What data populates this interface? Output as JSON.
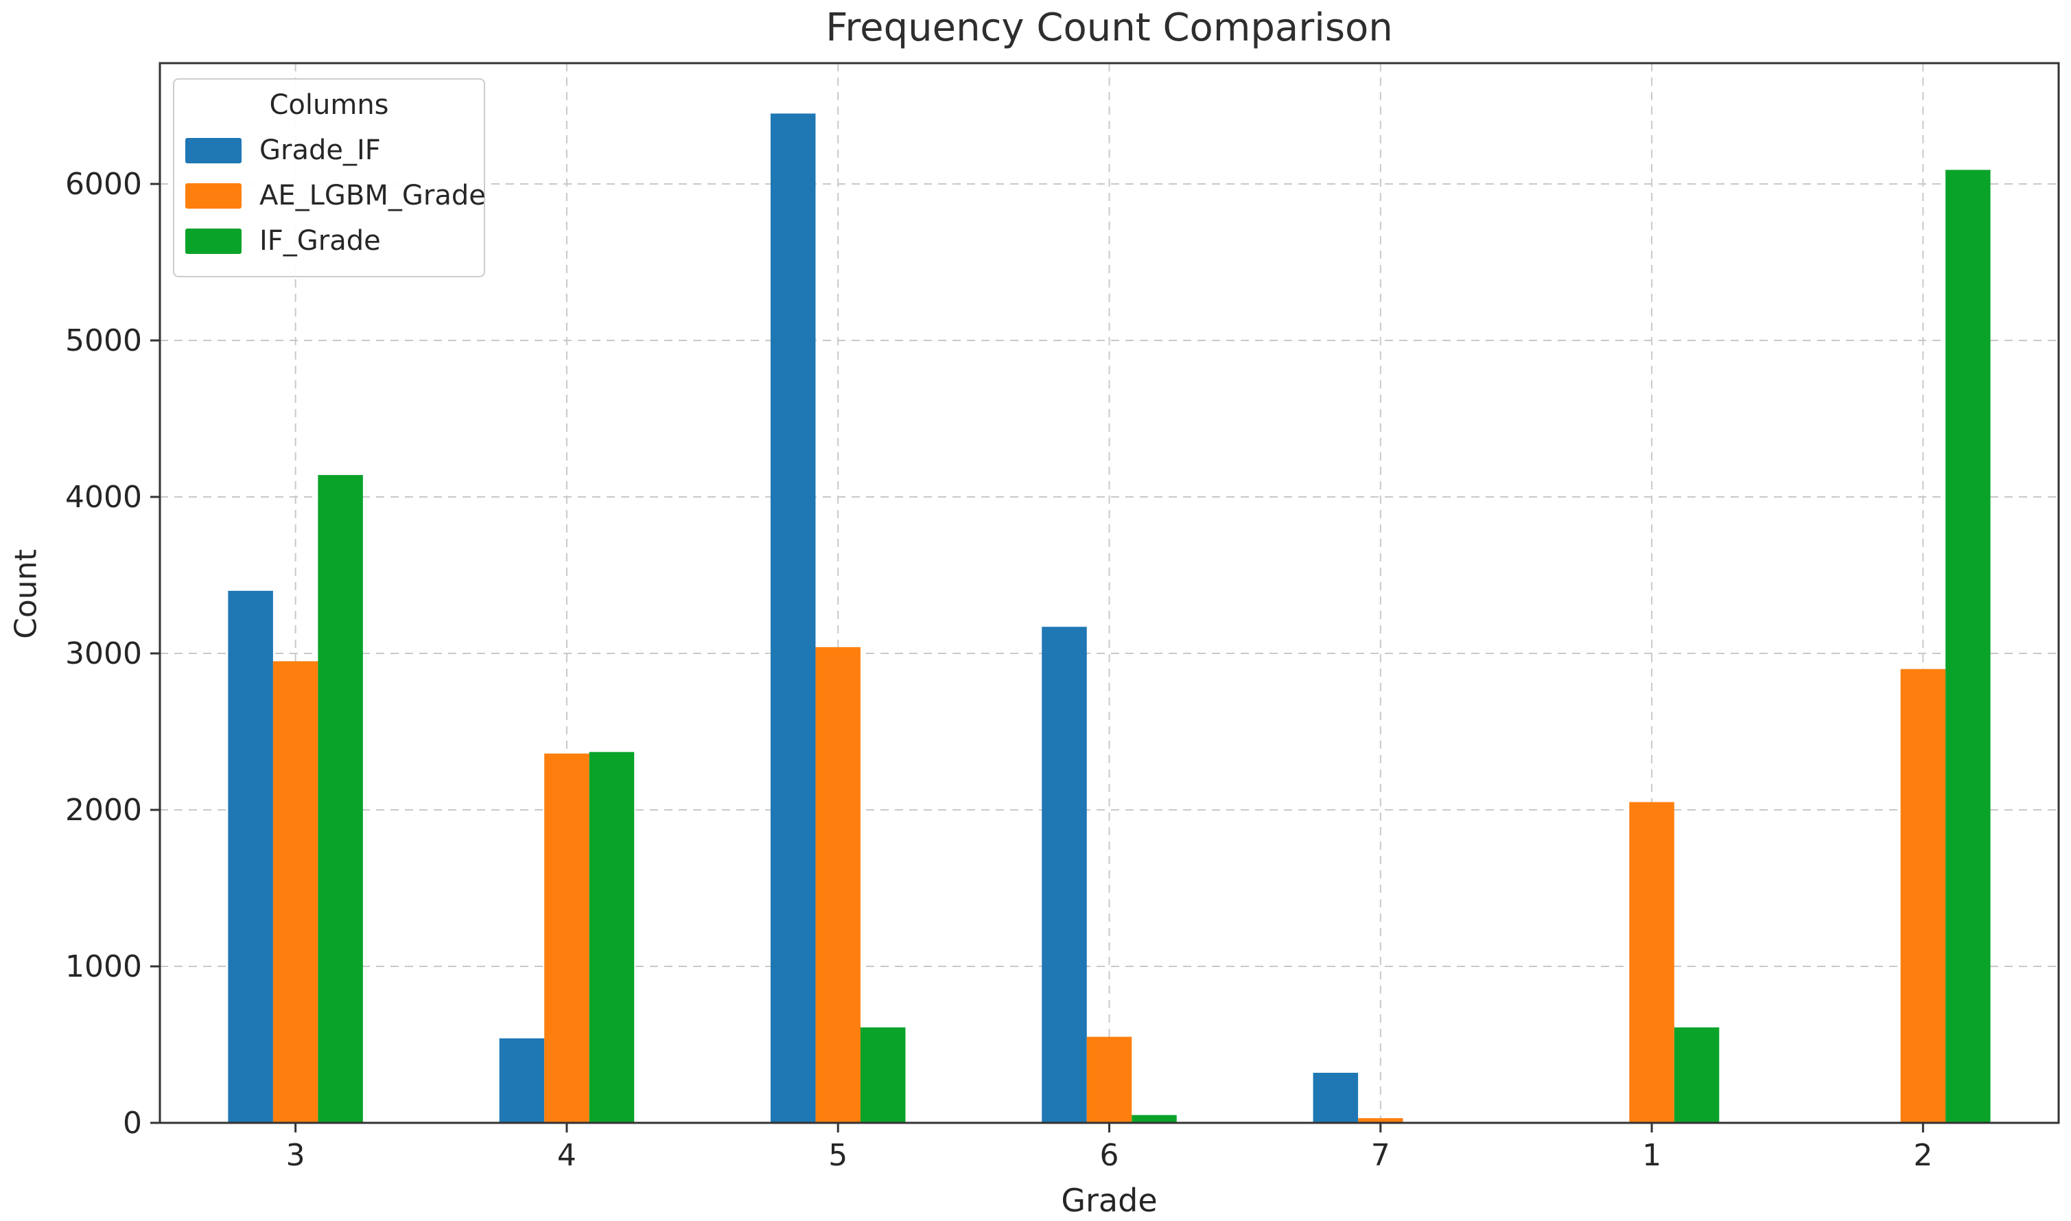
{
  "title": "Frequency Count Comparison",
  "chart_data": {
    "type": "bar",
    "title": "Frequency Count Comparison",
    "xlabel": "Grade",
    "ylabel": "Count",
    "categories": [
      "3",
      "4",
      "5",
      "6",
      "7",
      "1",
      "2"
    ],
    "series": [
      {
        "name": "Grade_IF",
        "color": "#1f77b4",
        "values": [
          3400,
          540,
          6450,
          3170,
          320,
          0,
          0
        ]
      },
      {
        "name": "AE_LGBM_Grade",
        "color": "#ff7f0e",
        "values": [
          2950,
          2360,
          3040,
          550,
          30,
          2050,
          2900
        ]
      },
      {
        "name": "IF_Grade",
        "color": "#0aa32a",
        "values": [
          4140,
          2370,
          610,
          50,
          0,
          610,
          6090
        ]
      }
    ],
    "y_ticks": [
      0,
      1000,
      2000,
      3000,
      4000,
      5000,
      6000
    ],
    "ylim": [
      0,
      6772
    ],
    "legend_title": "Columns",
    "legend_position": "upper left",
    "grid": true,
    "colors": {
      "spine": "#333333",
      "grid": "#c9c9c9",
      "tick_text": "#262626"
    }
  }
}
